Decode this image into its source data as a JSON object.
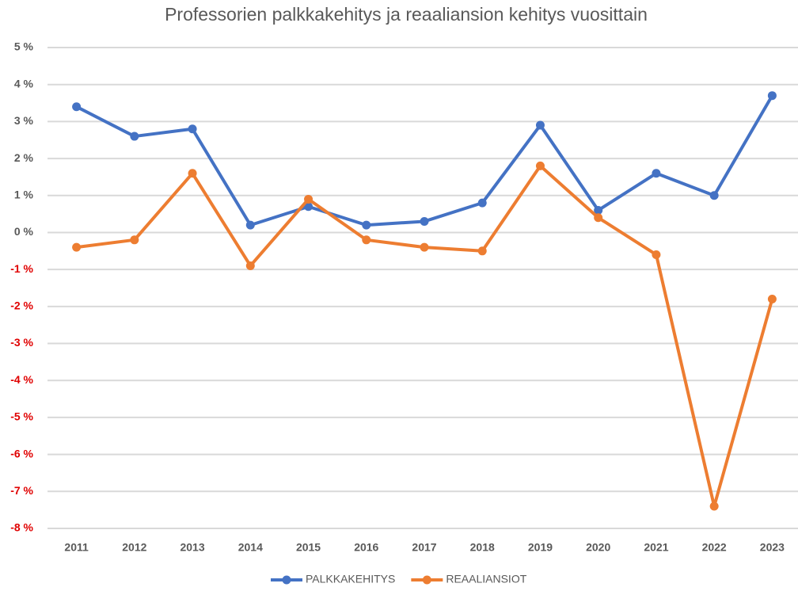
{
  "chart_data": {
    "type": "line",
    "title": "Professorien palkkakehitys ja reaaliansion kehitys vuosittain",
    "categories": [
      "2011",
      "2012",
      "2013",
      "2014",
      "2015",
      "2016",
      "2017",
      "2018",
      "2019",
      "2020",
      "2021",
      "2022",
      "2023"
    ],
    "series": [
      {
        "name": "PALKKAKEHITYS",
        "color": "#4472c4",
        "values": [
          3.4,
          2.6,
          2.8,
          0.2,
          0.7,
          0.2,
          0.3,
          0.8,
          2.9,
          0.6,
          1.6,
          1.0,
          3.7
        ]
      },
      {
        "name": "REAALIANSIOT",
        "color": "#ed7d31",
        "values": [
          -0.4,
          -0.2,
          1.6,
          -0.9,
          0.9,
          -0.2,
          -0.4,
          -0.5,
          1.8,
          0.4,
          -0.6,
          -7.4,
          -1.8
        ]
      }
    ],
    "ylim": [
      -8,
      5
    ],
    "yticks": [
      {
        "value": -8,
        "label": "-8 %"
      },
      {
        "value": -7,
        "label": "-7 %"
      },
      {
        "value": -6,
        "label": "-6 %"
      },
      {
        "value": -5,
        "label": "-5 %"
      },
      {
        "value": -4,
        "label": "-4 %"
      },
      {
        "value": -3,
        "label": "-3 %"
      },
      {
        "value": -2,
        "label": "-2 %"
      },
      {
        "value": -1,
        "label": "-1 %"
      },
      {
        "value": 0,
        "label": "0 %"
      },
      {
        "value": 1,
        "label": "1 %"
      },
      {
        "value": 2,
        "label": "2 %"
      },
      {
        "value": 3,
        "label": "3 %"
      },
      {
        "value": 4,
        "label": "4 %"
      },
      {
        "value": 5,
        "label": "5 %"
      }
    ],
    "grid": true,
    "negative_tick_label_color": "#e00000",
    "legend": "bottom"
  }
}
